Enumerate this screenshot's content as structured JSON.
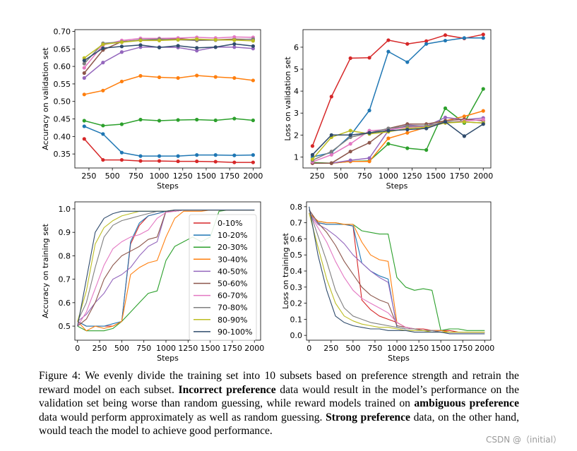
{
  "figure_label": "Figure 4:",
  "caption_parts": {
    "p1": " We evenly divide the training set into 10 subsets based on preference strength and retrain the reward model on each subset. ",
    "b1": "Incorrect preference",
    "p2": " data would result in the model’s performance on the validation set being worse than random guessing, while reward models trained on ",
    "b2": "ambiguous preference",
    "p3": " data would perform approximately as well as random guessing. ",
    "b3": "Strong preference",
    "p4": " data, on the other hand, would teach the model to achieve good performance."
  },
  "watermark": "CSDN @（initial）",
  "colors": [
    "#d62728",
    "#1f77b4",
    "#2ca02c",
    "#ff7f0e",
    "#9467bd",
    "#8c564b",
    "#e377c2",
    "#7f7f7f",
    "#bcbd22",
    "#2f4b6c"
  ],
  "legend": [
    "0-10%",
    "10-20%",
    "20-30%",
    "30-40%",
    "40-50%",
    "50-60%",
    "60-70%",
    "70-80%",
    "80-90%",
    "90-100%"
  ],
  "chart_data": [
    {
      "type": "line",
      "panel": "top-left",
      "xlabel": "Steps",
      "ylabel": "Accuracy on validation set",
      "xlim": [
        100,
        2080
      ],
      "ylim": [
        0.31,
        0.705
      ],
      "xticks": [
        250,
        500,
        750,
        1000,
        1250,
        1500,
        1750,
        2000
      ],
      "yticks": [
        0.35,
        0.4,
        0.45,
        0.5,
        0.55,
        0.6,
        0.65,
        0.7
      ],
      "ytick_labels": [
        "0.35",
        "0.40",
        "0.45",
        "0.50",
        "0.55",
        "0.60",
        "0.65",
        "0.70"
      ],
      "markers": true,
      "x": [
        200,
        400,
        600,
        800,
        1000,
        1200,
        1400,
        1600,
        1800,
        2000
      ],
      "series": [
        {
          "name": "0-10%",
          "values": [
            0.393,
            0.333,
            0.333,
            0.33,
            0.33,
            0.329,
            0.329,
            0.328,
            0.326,
            0.326
          ]
        },
        {
          "name": "10-20%",
          "values": [
            0.429,
            0.407,
            0.354,
            0.344,
            0.344,
            0.344,
            0.347,
            0.347,
            0.346,
            0.347
          ]
        },
        {
          "name": "20-30%",
          "values": [
            0.445,
            0.431,
            0.435,
            0.448,
            0.445,
            0.447,
            0.448,
            0.446,
            0.451,
            0.446
          ]
        },
        {
          "name": "30-40%",
          "values": [
            0.52,
            0.531,
            0.557,
            0.573,
            0.569,
            0.567,
            0.574,
            0.57,
            0.567,
            0.56
          ]
        },
        {
          "name": "40-50%",
          "values": [
            0.567,
            0.611,
            0.641,
            0.655,
            0.655,
            0.654,
            0.645,
            0.655,
            0.655,
            0.651
          ]
        },
        {
          "name": "50-60%",
          "values": [
            0.581,
            0.647,
            0.671,
            0.675,
            0.677,
            0.679,
            0.676,
            0.676,
            0.678,
            0.677
          ]
        },
        {
          "name": "60-70%",
          "values": [
            0.596,
            0.661,
            0.674,
            0.68,
            0.68,
            0.681,
            0.683,
            0.681,
            0.684,
            0.683
          ]
        },
        {
          "name": "70-80%",
          "values": [
            0.608,
            0.666,
            0.67,
            0.676,
            0.678,
            0.676,
            0.674,
            0.675,
            0.676,
            0.678
          ]
        },
        {
          "name": "80-90%",
          "values": [
            0.624,
            0.663,
            0.669,
            0.674,
            0.674,
            0.676,
            0.678,
            0.676,
            0.675,
            0.673
          ]
        },
        {
          "name": "90-100%",
          "values": [
            0.617,
            0.652,
            0.657,
            0.661,
            0.654,
            0.659,
            0.653,
            0.655,
            0.664,
            0.658
          ]
        }
      ]
    },
    {
      "type": "line",
      "panel": "top-right",
      "xlabel": "Steps",
      "ylabel": "Loss on validation set",
      "xlim": [
        100,
        2080
      ],
      "ylim": [
        0.5,
        6.8
      ],
      "xticks": [
        250,
        500,
        750,
        1000,
        1250,
        1500,
        1750,
        2000
      ],
      "yticks": [
        1,
        2,
        3,
        4,
        5,
        6
      ],
      "ytick_labels": [
        "1",
        "2",
        "3",
        "4",
        "5",
        "6"
      ],
      "markers": true,
      "x": [
        200,
        400,
        600,
        800,
        1000,
        1200,
        1400,
        1600,
        1800,
        2000
      ],
      "series": [
        {
          "name": "0-10%",
          "values": [
            1.5,
            3.75,
            5.5,
            5.52,
            6.32,
            6.15,
            6.28,
            6.55,
            6.4,
            6.58
          ]
        },
        {
          "name": "10-20%",
          "values": [
            1.0,
            1.2,
            1.98,
            3.12,
            5.8,
            5.32,
            6.15,
            6.3,
            6.42,
            6.42
          ]
        },
        {
          "name": "20-30%",
          "values": [
            0.75,
            0.72,
            0.8,
            0.82,
            1.6,
            1.4,
            1.32,
            3.22,
            2.55,
            4.1
          ]
        },
        {
          "name": "30-40%",
          "values": [
            0.72,
            0.72,
            0.8,
            0.8,
            1.85,
            2.1,
            2.35,
            2.65,
            2.85,
            3.1
          ]
        },
        {
          "name": "40-50%",
          "values": [
            0.72,
            0.72,
            0.85,
            0.95,
            2.2,
            2.45,
            2.4,
            2.8,
            2.7,
            2.78
          ]
        },
        {
          "name": "50-60%",
          "values": [
            0.72,
            0.72,
            1.25,
            1.65,
            2.3,
            2.5,
            2.5,
            2.65,
            2.72,
            2.65
          ]
        },
        {
          "name": "60-70%",
          "values": [
            0.78,
            1.1,
            1.6,
            2.2,
            2.25,
            2.35,
            2.4,
            2.55,
            2.65,
            2.7
          ]
        },
        {
          "name": "70-80%",
          "values": [
            0.85,
            1.25,
            1.9,
            2.1,
            2.3,
            2.4,
            2.42,
            2.6,
            2.6,
            2.55
          ]
        },
        {
          "name": "80-90%",
          "values": [
            0.9,
            1.9,
            2.2,
            2.05,
            2.15,
            2.3,
            2.35,
            2.55,
            2.6,
            2.55
          ]
        },
        {
          "name": "90-100%",
          "values": [
            1.1,
            2.0,
            2.0,
            2.1,
            2.2,
            2.25,
            2.3,
            2.6,
            1.95,
            2.5
          ]
        }
      ]
    },
    {
      "type": "line",
      "panel": "bottom-left",
      "xlabel": "Steps",
      "ylabel": "Accuracy on training set",
      "xlim": [
        -30,
        2070
      ],
      "ylim": [
        0.44,
        1.03
      ],
      "xticks": [
        0,
        250,
        500,
        750,
        1000,
        1250,
        1500,
        1750,
        2000
      ],
      "yticks": [
        0.5,
        0.6,
        0.7,
        0.8,
        0.9,
        1.0
      ],
      "ytick_labels": [
        "0.5",
        "0.6",
        "0.7",
        "0.8",
        "0.9",
        "1.0"
      ],
      "markers": false,
      "x": [
        0,
        100,
        200,
        300,
        400,
        500,
        600,
        700,
        800,
        900,
        1000,
        1100,
        1200,
        1300,
        1400,
        1500,
        1600,
        1700,
        1800,
        1900,
        2000
      ],
      "series": [
        {
          "name": "0-10%",
          "values": [
            0.52,
            0.5,
            0.5,
            0.5,
            0.5,
            0.52,
            0.85,
            0.93,
            0.97,
            0.98,
            0.99,
            0.99,
            0.995,
            0.995,
            0.995,
            0.995,
            0.995,
            0.995,
            0.995,
            0.995,
            0.995
          ]
        },
        {
          "name": "10-20%",
          "values": [
            0.52,
            0.5,
            0.5,
            0.5,
            0.51,
            0.52,
            0.86,
            0.94,
            0.97,
            0.98,
            0.99,
            0.99,
            0.995,
            0.995,
            0.995,
            0.995,
            0.995,
            0.995,
            0.995,
            0.995,
            0.995
          ]
        },
        {
          "name": "20-30%",
          "values": [
            0.5,
            0.48,
            0.48,
            0.48,
            0.49,
            0.52,
            0.56,
            0.6,
            0.64,
            0.65,
            0.78,
            0.84,
            0.86,
            0.88,
            0.86,
            0.88,
            0.99,
            0.995,
            0.995,
            0.995,
            0.995
          ]
        },
        {
          "name": "30-40%",
          "values": [
            0.52,
            0.48,
            0.5,
            0.49,
            0.5,
            0.52,
            0.72,
            0.75,
            0.77,
            0.78,
            0.88,
            0.96,
            0.99,
            0.99,
            0.99,
            0.995,
            0.995,
            0.995,
            0.995,
            0.995,
            0.995
          ]
        },
        {
          "name": "40-50%",
          "values": [
            0.52,
            0.55,
            0.6,
            0.64,
            0.7,
            0.72,
            0.75,
            0.8,
            0.84,
            0.86,
            0.99,
            0.99,
            0.995,
            0.995,
            0.995,
            0.995,
            0.995,
            0.995,
            0.995,
            0.995,
            0.995
          ]
        },
        {
          "name": "50-60%",
          "values": [
            0.5,
            0.53,
            0.6,
            0.7,
            0.76,
            0.8,
            0.82,
            0.84,
            0.87,
            0.88,
            0.99,
            0.99,
            0.995,
            0.995,
            0.995,
            0.995,
            0.995,
            0.995,
            0.995,
            0.995,
            0.995
          ]
        },
        {
          "name": "60-70%",
          "values": [
            0.5,
            0.56,
            0.66,
            0.76,
            0.83,
            0.86,
            0.88,
            0.89,
            0.91,
            0.96,
            0.985,
            0.99,
            0.995,
            0.995,
            0.995,
            0.995,
            0.995,
            0.995,
            0.995,
            0.995,
            0.995
          ]
        },
        {
          "name": "70-80%",
          "values": [
            0.52,
            0.6,
            0.75,
            0.88,
            0.93,
            0.95,
            0.96,
            0.97,
            0.98,
            0.99,
            0.99,
            0.995,
            0.995,
            0.995,
            0.995,
            0.995,
            0.995,
            0.995,
            0.995,
            0.995,
            0.995
          ]
        },
        {
          "name": "80-90%",
          "values": [
            0.52,
            0.65,
            0.85,
            0.92,
            0.95,
            0.97,
            0.98,
            0.99,
            0.99,
            0.99,
            0.99,
            0.995,
            0.995,
            0.995,
            0.995,
            0.995,
            0.995,
            0.995,
            0.995,
            0.995,
            0.995
          ]
        },
        {
          "name": "90-100%",
          "values": [
            0.5,
            0.7,
            0.9,
            0.96,
            0.98,
            0.99,
            0.99,
            0.99,
            0.99,
            0.99,
            0.99,
            0.995,
            0.995,
            0.995,
            0.995,
            0.995,
            0.995,
            0.995,
            0.995,
            0.995,
            0.995
          ]
        }
      ]
    },
    {
      "type": "line",
      "panel": "bottom-right",
      "xlabel": "Steps",
      "ylabel": "Loss on training set",
      "xlim": [
        -30,
        2070
      ],
      "ylim": [
        -0.03,
        0.83
      ],
      "xticks": [
        0,
        250,
        500,
        750,
        1000,
        1250,
        1500,
        1750,
        2000
      ],
      "yticks": [
        0.0,
        0.1,
        0.2,
        0.3,
        0.4,
        0.5,
        0.6,
        0.7,
        0.8
      ],
      "ytick_labels": [
        "0.0",
        "0.1",
        "0.2",
        "0.3",
        "0.4",
        "0.5",
        "0.6",
        "0.7",
        "0.8"
      ],
      "markers": false,
      "x": [
        0,
        100,
        200,
        300,
        400,
        500,
        600,
        700,
        800,
        900,
        1000,
        1100,
        1200,
        1300,
        1400,
        1500,
        1600,
        1700,
        1800,
        1900,
        2000
      ],
      "series": [
        {
          "name": "0-10%",
          "values": [
            0.78,
            0.7,
            0.69,
            0.69,
            0.69,
            0.68,
            0.22,
            0.16,
            0.12,
            0.1,
            0.08,
            0.05,
            0.04,
            0.04,
            0.03,
            0.03,
            0.03,
            0.02,
            0.02,
            0.02,
            0.02
          ]
        },
        {
          "name": "10-20%",
          "values": [
            0.78,
            0.7,
            0.69,
            0.69,
            0.69,
            0.68,
            0.45,
            0.4,
            0.37,
            0.35,
            0.05,
            0.04,
            0.04,
            0.03,
            0.03,
            0.03,
            0.02,
            0.02,
            0.02,
            0.02,
            0.02
          ]
        },
        {
          "name": "20-30%",
          "values": [
            0.76,
            0.71,
            0.7,
            0.7,
            0.69,
            0.69,
            0.65,
            0.64,
            0.63,
            0.63,
            0.36,
            0.3,
            0.28,
            0.29,
            0.28,
            0.03,
            0.04,
            0.04,
            0.03,
            0.03,
            0.03
          ]
        },
        {
          "name": "30-40%",
          "values": [
            0.76,
            0.71,
            0.7,
            0.7,
            0.69,
            0.69,
            0.58,
            0.5,
            0.47,
            0.46,
            0.08,
            0.05,
            0.04,
            0.03,
            0.03,
            0.03,
            0.02,
            0.02,
            0.02,
            0.02,
            0.02
          ]
        },
        {
          "name": "40-50%",
          "values": [
            0.76,
            0.69,
            0.66,
            0.62,
            0.57,
            0.5,
            0.45,
            0.4,
            0.36,
            0.33,
            0.06,
            0.05,
            0.04,
            0.03,
            0.03,
            0.02,
            0.02,
            0.02,
            0.02,
            0.02,
            0.02
          ]
        },
        {
          "name": "50-60%",
          "values": [
            0.78,
            0.7,
            0.64,
            0.56,
            0.46,
            0.38,
            0.3,
            0.25,
            0.22,
            0.2,
            0.06,
            0.05,
            0.04,
            0.03,
            0.03,
            0.02,
            0.02,
            0.02,
            0.02,
            0.02,
            0.02
          ]
        },
        {
          "name": "60-70%",
          "values": [
            0.76,
            0.67,
            0.58,
            0.46,
            0.36,
            0.28,
            0.23,
            0.2,
            0.17,
            0.14,
            0.08,
            0.05,
            0.04,
            0.03,
            0.03,
            0.02,
            0.02,
            0.02,
            0.02,
            0.02,
            0.02
          ]
        },
        {
          "name": "70-80%",
          "values": [
            0.78,
            0.62,
            0.46,
            0.28,
            0.17,
            0.12,
            0.1,
            0.08,
            0.07,
            0.06,
            0.05,
            0.04,
            0.04,
            0.03,
            0.03,
            0.02,
            0.02,
            0.02,
            0.02,
            0.02,
            0.02
          ]
        },
        {
          "name": "80-90%",
          "values": [
            0.76,
            0.55,
            0.35,
            0.2,
            0.12,
            0.09,
            0.07,
            0.06,
            0.05,
            0.05,
            0.04,
            0.03,
            0.03,
            0.03,
            0.02,
            0.02,
            0.02,
            0.02,
            0.02,
            0.02,
            0.02
          ]
        },
        {
          "name": "90-100%",
          "values": [
            0.8,
            0.5,
            0.28,
            0.12,
            0.08,
            0.06,
            0.05,
            0.04,
            0.04,
            0.03,
            0.03,
            0.03,
            0.02,
            0.02,
            0.02,
            0.02,
            0.01,
            0.01,
            0.01,
            0.01,
            0.01
          ]
        }
      ]
    }
  ]
}
